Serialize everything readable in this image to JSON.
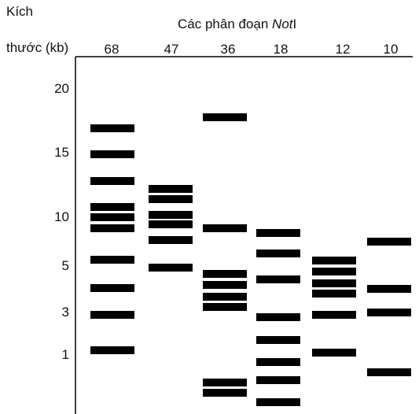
{
  "header": {
    "size_label_line1": "Kích",
    "size_label_line2": "thước (kb)",
    "title": {
      "prefix": "Các phân đoạn ",
      "italic": "Not",
      "suffix": "I"
    }
  },
  "size_markers": [
    "20",
    "15",
    "10",
    "5",
    "3",
    "1"
  ],
  "lanes": [
    {
      "label": "68"
    },
    {
      "label": "47"
    },
    {
      "label": "36"
    },
    {
      "label": "18"
    },
    {
      "label": "12"
    },
    {
      "label": "10"
    }
  ]
}
